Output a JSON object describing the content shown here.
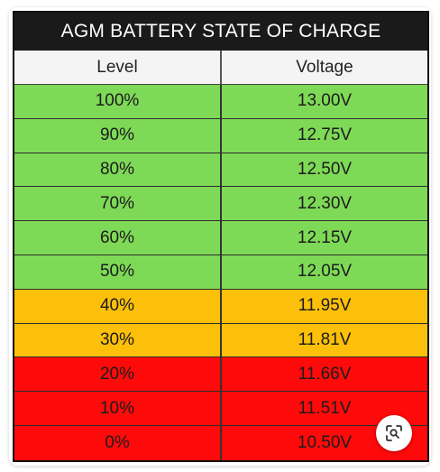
{
  "table": {
    "title": "AGM BATTERY STATE OF CHARGE",
    "headers": {
      "level": "Level",
      "voltage": "Voltage"
    },
    "colors": {
      "green": "#7ed957",
      "amber": "#fcc00a",
      "red": "#ff0a0a"
    },
    "rows": [
      {
        "level": "100%",
        "voltage": "13.00V",
        "band": "green"
      },
      {
        "level": "90%",
        "voltage": "12.75V",
        "band": "green"
      },
      {
        "level": "80%",
        "voltage": "12.50V",
        "band": "green"
      },
      {
        "level": "70%",
        "voltage": "12.30V",
        "band": "green"
      },
      {
        "level": "60%",
        "voltage": "12.15V",
        "band": "green"
      },
      {
        "level": "50%",
        "voltage": "12.05V",
        "band": "green"
      },
      {
        "level": "40%",
        "voltage": "11.95V",
        "band": "amber"
      },
      {
        "level": "30%",
        "voltage": "11.81V",
        "band": "amber"
      },
      {
        "level": "20%",
        "voltage": "11.66V",
        "band": "red"
      },
      {
        "level": "10%",
        "voltage": "11.51V",
        "band": "red"
      },
      {
        "level": "0%",
        "voltage": "10.50V",
        "band": "red"
      }
    ]
  },
  "overlay": {
    "icon": "visual-search-icon"
  }
}
